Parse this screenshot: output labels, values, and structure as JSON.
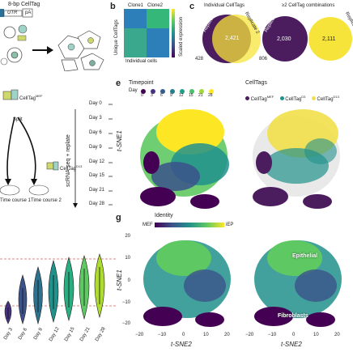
{
  "panel_letters": {
    "b": "b",
    "c": "c",
    "e": "e",
    "g": "g"
  },
  "construct": {
    "label": "8-bp CellTag",
    "utr": "UTR",
    "pa": "pA"
  },
  "protocol": {
    "mef_label": "CellTag",
    "mef_sup": "MEF",
    "split": "Split",
    "vertical_label": "scRNA-seq + replate",
    "d13_label": "CellTag",
    "d13_sup": "D13",
    "time_course_1": "Time course 1",
    "time_course_2": "Time course 2",
    "days": [
      "Day 0",
      "Day 3",
      "Day 6",
      "Day 9",
      "Day 12",
      "Day 15",
      "Day 21",
      "Day 28"
    ]
  },
  "panel_b": {
    "clone1": "Clone1",
    "clone2": "Clone2",
    "ylabel": "Unique CellTags",
    "xlabel": "Individual cells",
    "colorbar_label": "Scaled expression"
  },
  "panel_c": {
    "title_left": "Individual CellTags",
    "title_right": "≥2 CellTag combinations",
    "rep1": "Replicate 1",
    "rep2": "Replicate 2",
    "left": {
      "only1": "428",
      "both": "2,421",
      "only2": "806"
    },
    "right": {
      "only1": "2,030",
      "only2": "2,111"
    },
    "color_rep1": "#4b1d5e",
    "color_rep2": "#f7e43a"
  },
  "panel_e": {
    "timepoint_title": "Timepoint",
    "day_label": "Day",
    "day_ticks": [
      "0",
      "3",
      "6",
      "9",
      "12",
      "15",
      "21",
      "28"
    ],
    "celltags_title": "CellTags",
    "legend": [
      {
        "name": "CellTag",
        "sup": "MEF",
        "color": "#4b1d5e"
      },
      {
        "name": "CellTag",
        "sup": "D3",
        "color": "#21918c"
      },
      {
        "name": "CellTag",
        "sup": "D13",
        "color": "#f2e04a"
      }
    ],
    "ylabel": "t-SNE1"
  },
  "panel_g": {
    "identity_title": "Identity",
    "mef": "MEF",
    "iep": "iEP",
    "ylabel": "t-SNE1",
    "xlabel": "t-SNE2",
    "xticks": [
      "−20",
      "−10",
      "0",
      "10",
      "20"
    ],
    "yticks": [
      "20",
      "10",
      "0",
      "−10",
      "−20"
    ],
    "overlay_1": "Fibroblasts",
    "overlay_2": "Epithelial"
  },
  "panel_f": {
    "categories": [
      "Day 3",
      "Day 6",
      "Day 9",
      "Day 12",
      "Day 15",
      "Day 21",
      "Day 28"
    ]
  }
}
